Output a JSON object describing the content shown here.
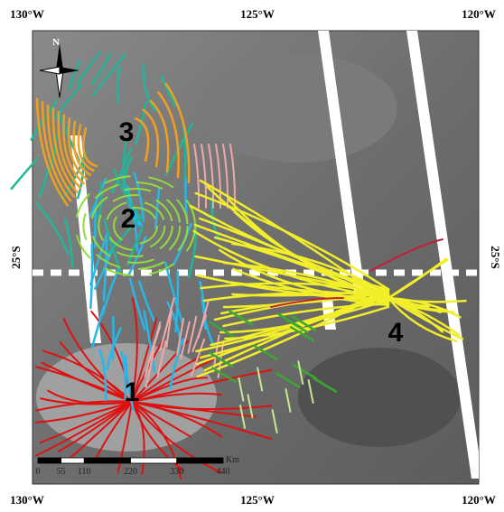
{
  "axes": {
    "top": [
      "130°W",
      "125°W",
      "120°W"
    ],
    "bottom": [
      "130°W",
      "125°W",
      "120°W"
    ],
    "left": "25°S",
    "right": "25°S"
  },
  "centers": [
    "1",
    "2",
    "3",
    "4"
  ],
  "compass": "N",
  "scale_bar": {
    "unit": "Km",
    "ticks": [
      0,
      55,
      110,
      220,
      330,
      440
    ]
  }
}
